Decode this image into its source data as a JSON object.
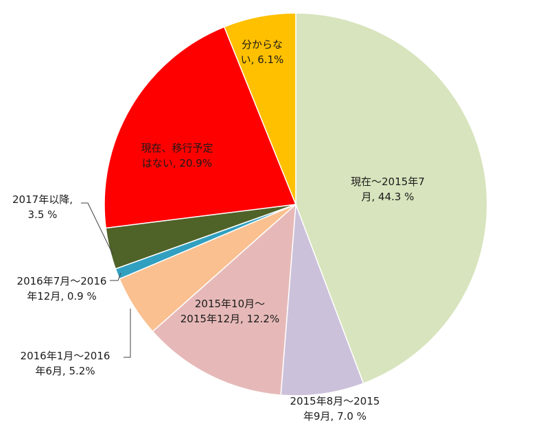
{
  "chart_data": {
    "type": "pie",
    "slices": [
      {
        "label_lines": [
          "現在～2015年7",
          "月, 44.3 %"
        ],
        "value": 44.3,
        "color": "#d7e4bd"
      },
      {
        "label_lines": [
          "2015年8月～2015",
          "年9月, 7.0 %"
        ],
        "value": 7.0,
        "color": "#ccc1da"
      },
      {
        "label_lines": [
          "2015年10月～",
          "2015年12月, 12.2%"
        ],
        "value": 12.2,
        "color": "#e6b9b8"
      },
      {
        "label_lines": [
          "2016年1月～2016",
          "年6月, 5.2%"
        ],
        "value": 5.2,
        "color": "#fac090"
      },
      {
        "label_lines": [
          "2016年7月～2016",
          "年12月, 0.9 %"
        ],
        "value": 0.9,
        "color": "#31a0c0"
      },
      {
        "label_lines": [
          "2017年以降,",
          "3.5 %"
        ],
        "value": 3.5,
        "color": "#4f6228"
      },
      {
        "label_lines": [
          "現在、移行予定",
          "はない, 20.9%"
        ],
        "value": 20.9,
        "color": "#ff0000"
      },
      {
        "label_lines": [
          "分からな",
          "い, 6.1%"
        ],
        "value": 6.1,
        "color": "#ffc000"
      }
    ]
  }
}
